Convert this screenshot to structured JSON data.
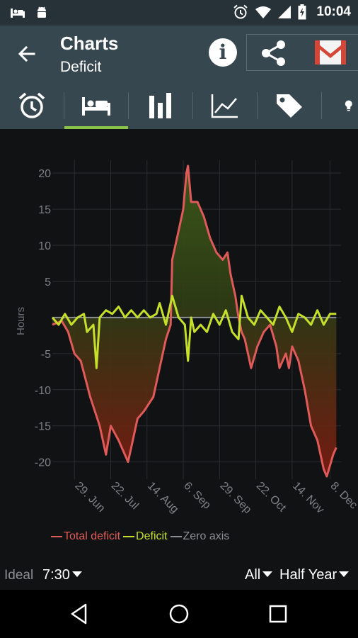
{
  "status_bar": {
    "time": "10:04",
    "left_icons": [
      "bed-icon",
      "android-icon"
    ],
    "right_icons": [
      "alarm-icon",
      "wifi-icon",
      "signal-icon",
      "battery-charging-icon"
    ]
  },
  "toolbar": {
    "title": "Charts",
    "subtitle": "Deficit",
    "back_icon": "arrow-back-icon",
    "actions": [
      "info-icon",
      "share-icon",
      "gmail-icon"
    ]
  },
  "tabs": {
    "items": [
      "alarm-clock-icon",
      "bed-icon",
      "bar-chart-icon",
      "trend-chart-icon",
      "tag-icon",
      "lightbulb-icon"
    ],
    "selected": 1
  },
  "colors": {
    "background": "#111214",
    "toolbar": "#37474f",
    "statusbar": "#263238",
    "accent": "#8bc34a",
    "total_deficit": "#e05a5a",
    "deficit": "#c6e02a",
    "zero_axis": "#8a8f94"
  },
  "chart_data": {
    "type": "line",
    "ylabel": "Hours",
    "ylim": [
      -22,
      21
    ],
    "yticks": [
      20,
      15,
      10,
      5,
      0,
      -5,
      -10,
      -15,
      -20
    ],
    "ytick_labels": [
      "20",
      "15",
      "10",
      "5",
      "",
      "-5",
      "-10",
      "-15",
      "-20"
    ],
    "xlim": [
      0,
      183
    ],
    "xtick_labels": [
      "29. Jun",
      "22. Jul",
      "14. Aug",
      "6. Sep",
      "29. Sep",
      "22. Oct",
      "14. Nov",
      "8. Dec"
    ],
    "xtick_positions": [
      14,
      37,
      60,
      83,
      106,
      129,
      152,
      176
    ],
    "grid": true,
    "series": [
      {
        "name": "Total deficit",
        "color": "#e05a5a",
        "points": [
          [
            0,
            -1
          ],
          [
            6,
            -0.5
          ],
          [
            10,
            -2
          ],
          [
            14,
            -5
          ],
          [
            18,
            -6
          ],
          [
            24,
            -11
          ],
          [
            30,
            -15
          ],
          [
            34,
            -19
          ],
          [
            37,
            -15
          ],
          [
            42,
            -17
          ],
          [
            48,
            -20
          ],
          [
            50,
            -18
          ],
          [
            54,
            -14
          ],
          [
            58,
            -13
          ],
          [
            64,
            -11
          ],
          [
            68,
            -7
          ],
          [
            72,
            -3
          ],
          [
            75,
            -1
          ],
          [
            76,
            8
          ],
          [
            80,
            12
          ],
          [
            83,
            15
          ],
          [
            85,
            20
          ],
          [
            86,
            21
          ],
          [
            88,
            16
          ],
          [
            92,
            16
          ],
          [
            96,
            14
          ],
          [
            100,
            11
          ],
          [
            104,
            9
          ],
          [
            108,
            8
          ],
          [
            111,
            9
          ],
          [
            113,
            6
          ],
          [
            116,
            3
          ],
          [
            118,
            0
          ],
          [
            120,
            -2
          ],
          [
            122,
            -3
          ],
          [
            124,
            -5
          ],
          [
            126,
            -7
          ],
          [
            130,
            -4
          ],
          [
            134,
            -2
          ],
          [
            138,
            -1
          ],
          [
            142,
            -4
          ],
          [
            144,
            -7
          ],
          [
            148,
            -5
          ],
          [
            150,
            -7
          ],
          [
            152,
            -4
          ],
          [
            156,
            -6
          ],
          [
            160,
            -10
          ],
          [
            164,
            -15
          ],
          [
            168,
            -17
          ],
          [
            172,
            -21
          ],
          [
            174,
            -22
          ],
          [
            178,
            -19
          ],
          [
            180,
            -18
          ]
        ]
      },
      {
        "name": "Deficit",
        "color": "#c6e02a",
        "points": [
          [
            0,
            0
          ],
          [
            4,
            -1
          ],
          [
            8,
            0.5
          ],
          [
            12,
            -1
          ],
          [
            16,
            0
          ],
          [
            20,
            0.5
          ],
          [
            22,
            -2
          ],
          [
            26,
            -1
          ],
          [
            28,
            -7
          ],
          [
            30,
            0
          ],
          [
            34,
            1
          ],
          [
            38,
            0.5
          ],
          [
            42,
            1.5
          ],
          [
            46,
            0
          ],
          [
            50,
            1
          ],
          [
            54,
            0
          ],
          [
            58,
            1
          ],
          [
            62,
            0
          ],
          [
            66,
            0.5
          ],
          [
            68,
            2
          ],
          [
            72,
            -1
          ],
          [
            76,
            3
          ],
          [
            80,
            0
          ],
          [
            84,
            -1
          ],
          [
            86,
            -6
          ],
          [
            88,
            0
          ],
          [
            90,
            -2
          ],
          [
            94,
            -1
          ],
          [
            98,
            -2
          ],
          [
            102,
            0.5
          ],
          [
            106,
            -1
          ],
          [
            110,
            1
          ],
          [
            114,
            -2
          ],
          [
            118,
            -3
          ],
          [
            120,
            3
          ],
          [
            124,
            0
          ],
          [
            128,
            -1
          ],
          [
            132,
            1
          ],
          [
            136,
            0
          ],
          [
            140,
            -1
          ],
          [
            144,
            1.5
          ],
          [
            148,
            0
          ],
          [
            152,
            -2
          ],
          [
            156,
            0.5
          ],
          [
            160,
            0
          ],
          [
            164,
            -1
          ],
          [
            168,
            1
          ],
          [
            172,
            -1
          ],
          [
            176,
            0.5
          ],
          [
            180,
            0.5
          ]
        ]
      },
      {
        "name": "Zero axis",
        "color": "#8a8f94",
        "points": [
          [
            0,
            0
          ],
          [
            180,
            0
          ]
        ]
      }
    ],
    "legend": [
      {
        "label": "Total deficit",
        "color": "#e05a5a"
      },
      {
        "label": "Deficit",
        "color": "#c6e02a"
      },
      {
        "label": "Zero axis",
        "color": "#8a8f94"
      }
    ],
    "legend_position": "bottom-left"
  },
  "bottom": {
    "ideal_label": "Ideal",
    "ideal_value": "7:30",
    "filter_all": "All",
    "filter_range": "Half Year"
  },
  "navbar": {
    "buttons": [
      "back-triangle-icon",
      "home-circle-icon",
      "recents-square-icon"
    ]
  }
}
